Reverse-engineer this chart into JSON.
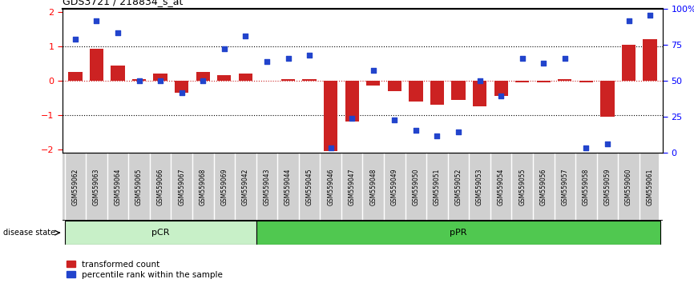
{
  "title": "GDS3721 / 218834_s_at",
  "samples": [
    "GSM559062",
    "GSM559063",
    "GSM559064",
    "GSM559065",
    "GSM559066",
    "GSM559067",
    "GSM559068",
    "GSM559069",
    "GSM559042",
    "GSM559043",
    "GSM559044",
    "GSM559045",
    "GSM559046",
    "GSM559047",
    "GSM559048",
    "GSM559049",
    "GSM559050",
    "GSM559051",
    "GSM559052",
    "GSM559053",
    "GSM559054",
    "GSM559055",
    "GSM559056",
    "GSM559057",
    "GSM559058",
    "GSM559059",
    "GSM559060",
    "GSM559061"
  ],
  "transformed_count": [
    0.25,
    0.92,
    0.45,
    0.05,
    0.2,
    -0.35,
    0.25,
    0.15,
    0.2,
    0.0,
    0.05,
    0.05,
    -2.05,
    -1.2,
    -0.15,
    -0.3,
    -0.6,
    -0.7,
    -0.55,
    -0.75,
    -0.45,
    -0.05,
    -0.05,
    0.05,
    -0.05,
    -1.05,
    1.05,
    1.2
  ],
  "percentile_rank": [
    1.2,
    1.75,
    1.4,
    0.0,
    0.0,
    -0.35,
    0.0,
    0.92,
    1.3,
    0.55,
    0.65,
    0.75,
    -1.95,
    -1.1,
    0.3,
    -1.15,
    -1.45,
    -1.6,
    -1.5,
    0.0,
    -0.45,
    0.65,
    0.5,
    0.65,
    -1.95,
    -1.85,
    1.75,
    1.9
  ],
  "group_pCR_indices": [
    0,
    8
  ],
  "group_pPR_indices": [
    9,
    27
  ],
  "bar_color": "#cc2222",
  "dot_color": "#2244cc",
  "ylim": [
    -2.1,
    2.1
  ],
  "y2lim": [
    0,
    100
  ],
  "yticks": [
    -2,
    -1,
    0,
    1,
    2
  ],
  "y2ticks": [
    0,
    25,
    50,
    75,
    100
  ],
  "y2ticklabels": [
    "0",
    "25",
    "50",
    "75",
    "100%"
  ],
  "dotted_lines": [
    -1.0,
    0.0,
    1.0
  ],
  "dotted_colors": [
    "black",
    "#cc2222",
    "black"
  ],
  "legend_red": "transformed count",
  "legend_blue": "percentile rank within the sample",
  "pCR_color": "#c8f0c8",
  "pPR_color": "#50c850",
  "label_bg_color": "#d0d0d0"
}
